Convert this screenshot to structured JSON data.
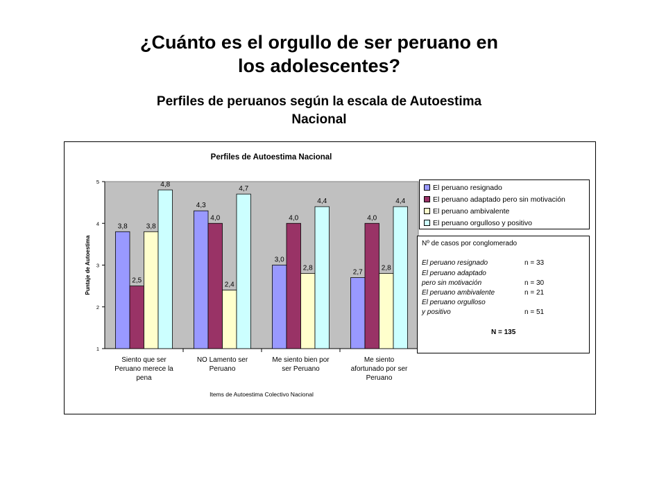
{
  "page": {
    "title": "¿Cuánto es el orgullo de ser peruano en los adolescentes?",
    "subtitle": "Perfiles de peruanos según la escala de Autoestima Nacional"
  },
  "chart_data": {
    "type": "bar",
    "title": "Perfiles de Autoestima Nacional",
    "xlabel": "Items de Autoestima Colectivo Nacional",
    "ylabel": "Puntaje de Autoestima",
    "ylim": [
      1,
      5
    ],
    "yticks": [
      "1",
      "2",
      "3",
      "4",
      "5"
    ],
    "categories": [
      [
        "Siento que ser",
        "Peruano merece la",
        "pena"
      ],
      [
        "NO Lamento ser",
        "Peruano"
      ],
      [
        "Me siento bien por",
        "ser Peruano"
      ],
      [
        "Me siento",
        "afortunado por ser",
        "Peruano"
      ]
    ],
    "series": [
      {
        "name": "El peruano resignado",
        "color": "#9999ff",
        "values": [
          3.8,
          4.3,
          3.0,
          2.7
        ],
        "labels": [
          "3,8",
          "4,3",
          "3,0",
          "2,7"
        ]
      },
      {
        "name": "El peruano adaptado pero sin motivación",
        "color": "#993366",
        "values": [
          2.5,
          4.0,
          4.0,
          4.0
        ],
        "labels": [
          "2,5",
          "4,0",
          "4,0",
          "4,0"
        ]
      },
      {
        "name": "El peruano ambivalente",
        "color": "#ffffcc",
        "values": [
          3.8,
          2.4,
          2.8,
          2.8
        ],
        "labels": [
          "3,8",
          "2,4",
          "2,8",
          "2,8"
        ]
      },
      {
        "name": "El peruano orgulloso y positivo",
        "color": "#ccffff",
        "values": [
          4.8,
          4.7,
          4.4,
          4.4
        ],
        "labels": [
          "4,8",
          "4,7",
          "4,4",
          "4,4"
        ]
      }
    ],
    "plot_background": "#c0c0c0",
    "legend_position": "right"
  },
  "cases": {
    "heading": "Nº de casos por conglomerado",
    "rows": [
      {
        "label": "El peruano resignado",
        "n": "n = 33"
      },
      {
        "label": "El peruano adaptado",
        "n": ""
      },
      {
        "label": "pero sin motivación",
        "n": "n = 30"
      },
      {
        "label": "El peruano ambivalente",
        "n": "n = 21"
      },
      {
        "label": "El peruano orgulloso",
        "n": ""
      },
      {
        "label": "y positivo",
        "n": "n = 51"
      }
    ],
    "total": "N = 135"
  }
}
